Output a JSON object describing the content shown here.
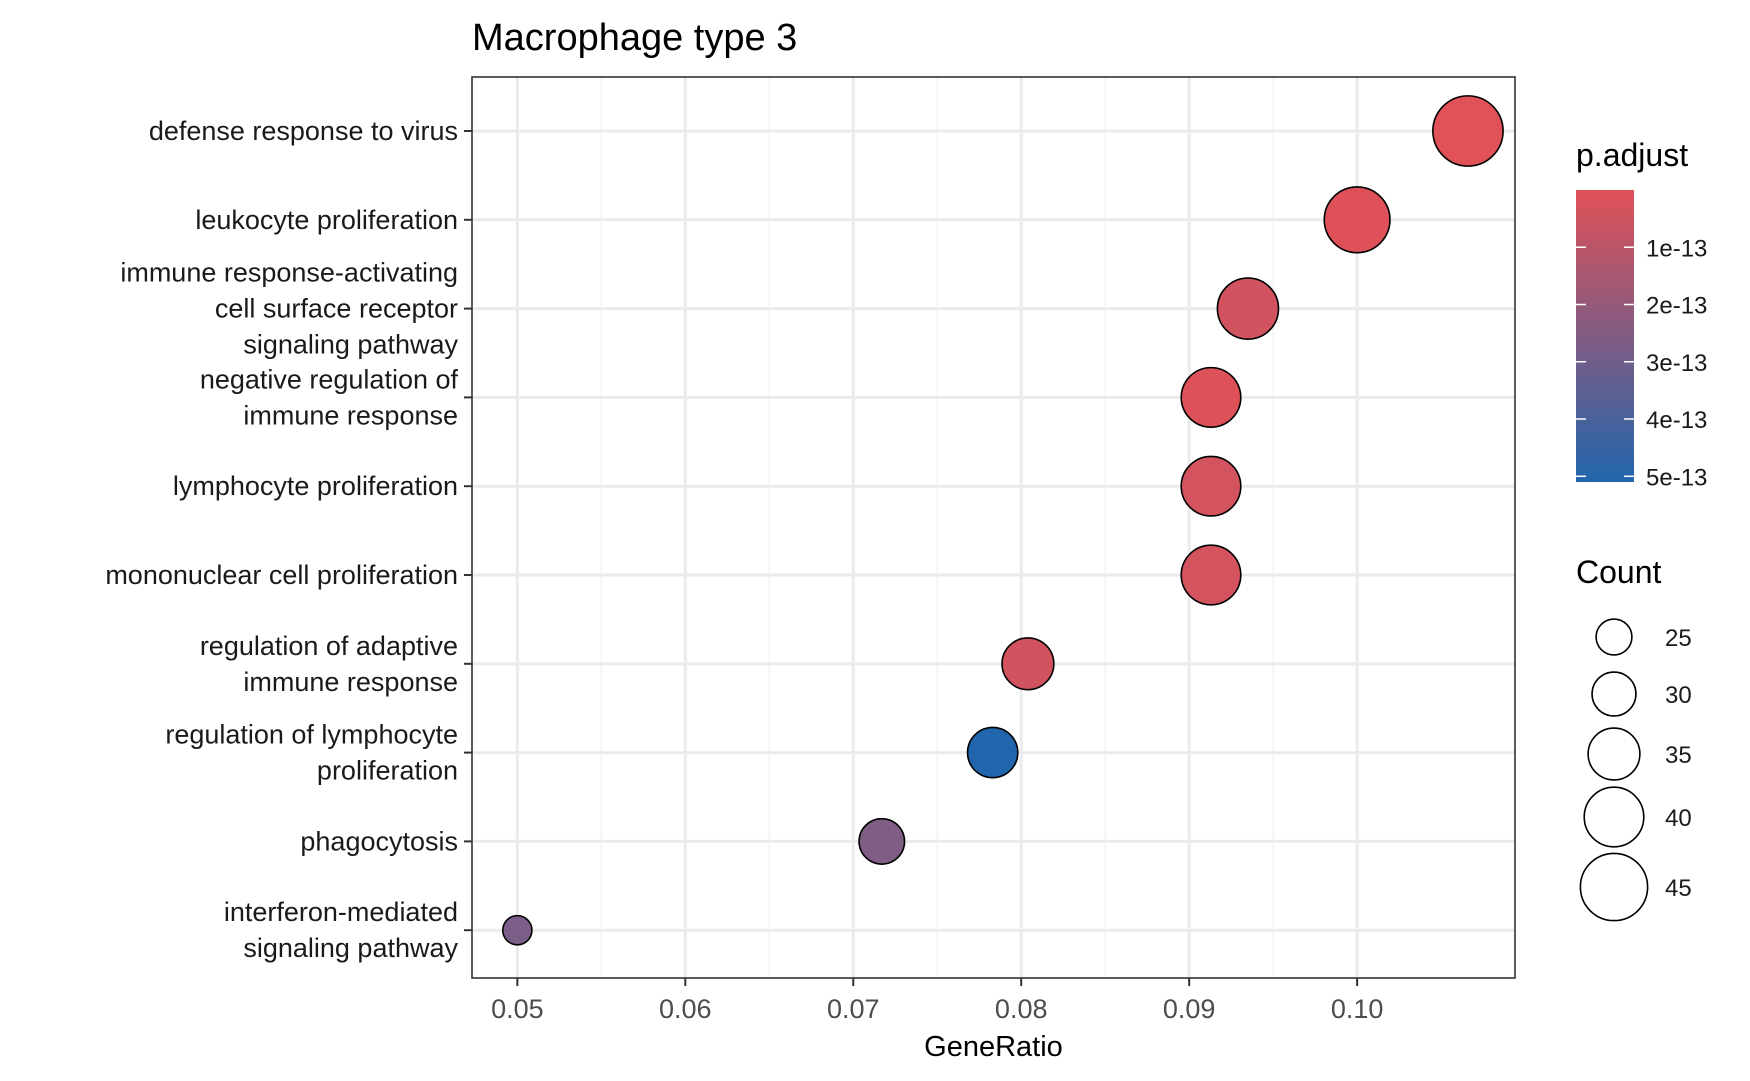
{
  "chart_data": {
    "type": "scatter",
    "title": "Macrophage type 3",
    "xlabel": "GeneRatio",
    "ylabel": "",
    "xlim": [
      0.0473,
      0.1094
    ],
    "xticks": [
      0.05,
      0.06,
      0.07,
      0.08,
      0.09,
      0.1
    ],
    "xtick_labels": [
      "0.05",
      "0.06",
      "0.07",
      "0.08",
      "0.09",
      "0.10"
    ],
    "grid": true,
    "categories": [
      [
        "defense response to virus"
      ],
      [
        "leukocyte proliferation"
      ],
      [
        "immune response-activating",
        "cell surface receptor",
        "signaling pathway"
      ],
      [
        "negative regulation of",
        "immune response"
      ],
      [
        "lymphocyte proliferation"
      ],
      [
        "mononuclear cell proliferation"
      ],
      [
        "regulation of adaptive",
        "immune response"
      ],
      [
        "regulation of lymphocyte",
        "proliferation"
      ],
      [
        "phagocytosis"
      ],
      [
        "interferon-mediated",
        "signaling pathway"
      ]
    ],
    "points": [
      {
        "x": 0.1066,
        "count": 47,
        "p_adjust": 1e-15
      },
      {
        "x": 0.1,
        "count": 44,
        "p_adjust": 2e-15
      },
      {
        "x": 0.0935,
        "count": 41,
        "p_adjust": 6e-14
      },
      {
        "x": 0.0913,
        "count": 40,
        "p_adjust": 1e-14
      },
      {
        "x": 0.0913,
        "count": 40,
        "p_adjust": 5e-14
      },
      {
        "x": 0.0913,
        "count": 40,
        "p_adjust": 5e-14
      },
      {
        "x": 0.0804,
        "count": 35,
        "p_adjust": 6e-14
      },
      {
        "x": 0.0783,
        "count": 34,
        "p_adjust": 5.1e-13
      },
      {
        "x": 0.0717,
        "count": 31,
        "p_adjust": 3.2e-13
      },
      {
        "x": 0.05,
        "count": 21,
        "p_adjust": 3.3e-13
      }
    ],
    "color_legend": {
      "title": "p.adjust",
      "min": 0,
      "max": 5.1e-13,
      "low_color": "#e05158",
      "high_color": "#2166ac",
      "ticks": [
        {
          "value": 1e-13,
          "label": "1e-13"
        },
        {
          "value": 2e-13,
          "label": "2e-13"
        },
        {
          "value": 3e-13,
          "label": "3e-13"
        },
        {
          "value": 4e-13,
          "label": "4e-13"
        },
        {
          "value": 5e-13,
          "label": "5e-13"
        }
      ]
    },
    "size_legend": {
      "title": "Count",
      "entries": [
        {
          "value": 25,
          "label": "25"
        },
        {
          "value": 30,
          "label": "30"
        },
        {
          "value": 35,
          "label": "35"
        },
        {
          "value": 40,
          "label": "40"
        },
        {
          "value": 45,
          "label": "45"
        }
      ]
    },
    "colors": {
      "panel_border": "#333333",
      "grid_major": "#ebebeb",
      "grid_minor": "#f3f3f3",
      "point_stroke": "#000000"
    }
  }
}
